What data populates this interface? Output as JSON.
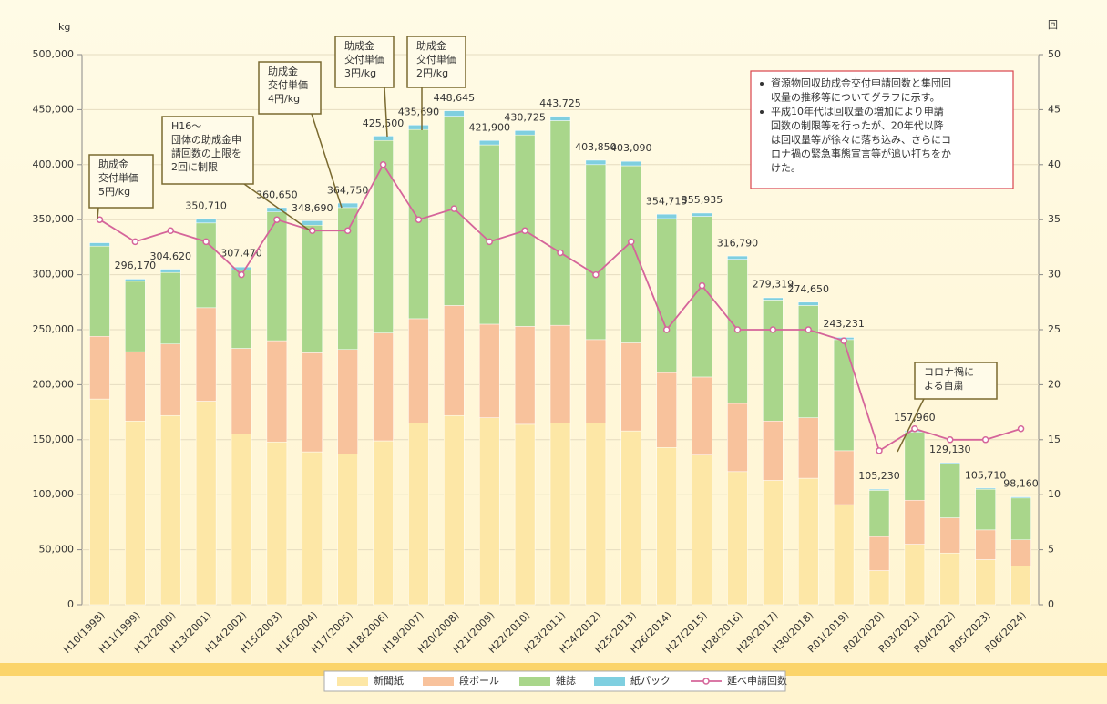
{
  "chart_data": {
    "type": "bar",
    "stacked": true,
    "y_label": "kg",
    "y2_label": "回",
    "categories": [
      "H10(1998)",
      "H11(1999)",
      "H12(2000)",
      "H13(2001)",
      "H14(2002)",
      "H15(2003)",
      "H16(2004)",
      "H17(2005)",
      "H18(2006)",
      "H19(2007)",
      "H20(2008)",
      "H21(2009)",
      "H22(2010)",
      "H23(2011)",
      "H24(2012)",
      "H25(2013)",
      "H26(2014)",
      "H27(2015)",
      "H28(2016)",
      "H29(2017)",
      "H30(2018)",
      "R01(2019)",
      "R02(2020)",
      "R03(2021)",
      "R04(2022)",
      "R05(2023)",
      "R06(2024)"
    ],
    "series": [
      {
        "name": "新聞紙",
        "color": "#fde7a6",
        "values": [
          187000,
          167000,
          172000,
          185000,
          155000,
          148000,
          139000,
          137000,
          149000,
          165000,
          172000,
          170000,
          164000,
          165000,
          165000,
          158000,
          143000,
          136000,
          121000,
          113000,
          115000,
          91000,
          31000,
          55000,
          47000,
          41000,
          35000
        ]
      },
      {
        "name": "段ボール",
        "color": "#f8c29c",
        "values": [
          57000,
          63000,
          65000,
          85000,
          78000,
          92000,
          90000,
          95000,
          98000,
          95000,
          100000,
          85000,
          89000,
          89000,
          76000,
          80000,
          68000,
          71000,
          62000,
          54000,
          55000,
          49000,
          31000,
          40000,
          32000,
          27000,
          24000
        ]
      },
      {
        "name": "雑誌",
        "color": "#a9d68b",
        "values": [
          82000,
          64000,
          65000,
          77000,
          71000,
          117000,
          116000,
          129000,
          175000,
          172000,
          172000,
          163000,
          174000,
          186000,
          159000,
          161000,
          140000,
          146000,
          131000,
          110000,
          102000,
          101000,
          42000,
          62000,
          49000,
          37000,
          38000
        ]
      },
      {
        "name": "紙パック",
        "color": "#7fcfe0",
        "values": [
          3000,
          2000,
          3000,
          4000,
          3000,
          4000,
          4000,
          4000,
          4000,
          4000,
          5000,
          4000,
          4000,
          4000,
          4000,
          4000,
          4000,
          3000,
          3000,
          2000,
          3000,
          2000,
          1000,
          1000,
          1000,
          1000,
          1000
        ]
      },
      {
        "name": "延べ申請回数",
        "color": "#d5659a",
        "type": "line",
        "axis": "y2",
        "values": [
          35,
          33,
          34,
          33,
          30,
          35,
          34,
          34,
          40,
          35,
          36,
          33,
          34,
          32,
          30,
          33,
          25,
          29,
          25,
          25,
          25,
          24,
          14,
          16,
          15,
          15,
          16
        ]
      }
    ],
    "totals": [
      null,
      {
        "value": 296170,
        "label": "296,170"
      },
      {
        "value": 304620,
        "label": "304,620"
      },
      {
        "value": 350710,
        "label": "350,710"
      },
      {
        "value": 307470,
        "label": "307,470"
      },
      {
        "value": 360650,
        "label": "360,650"
      },
      {
        "value": 348690,
        "label": "348,690"
      },
      {
        "value": 364750,
        "label": "364,750"
      },
      {
        "value": 425500,
        "label": "425,500"
      },
      {
        "value": 435690,
        "label": "435,690"
      },
      {
        "value": 448645,
        "label": "448,645"
      },
      {
        "value": 421900,
        "label": "421,900"
      },
      {
        "value": 430725,
        "label": "430,725"
      },
      {
        "value": 443725,
        "label": "443,725"
      },
      {
        "value": 403850,
        "label": "403,850"
      },
      {
        "value": 403090,
        "label": "403,090"
      },
      {
        "value": 354715,
        "label": "354,715"
      },
      {
        "value": 355935,
        "label": "355,935"
      },
      {
        "value": 316790,
        "label": "316,790"
      },
      {
        "value": 279319,
        "label": "279,319"
      },
      {
        "value": 274650,
        "label": "274,650"
      },
      {
        "value": 243231,
        "label": "243,231"
      },
      {
        "value": 105230,
        "label": "105,230"
      },
      {
        "value": 157960,
        "label": "157,960"
      },
      {
        "value": 129130,
        "label": "129,130"
      },
      {
        "value": 105710,
        "label": "105,710"
      },
      {
        "value": 98160,
        "label": "98,160"
      }
    ],
    "ylim": [
      0,
      500000
    ],
    "yticks": [
      0,
      {
        "value": 50000,
        "label": "50,000"
      },
      {
        "value": 100000,
        "label": "100,000"
      },
      {
        "value": 150000,
        "label": "150,000"
      },
      {
        "value": 200000,
        "label": "200,000"
      },
      {
        "value": 250000,
        "label": "250,000"
      },
      {
        "value": 300000,
        "label": "300,000"
      },
      {
        "value": 350000,
        "label": "350,000"
      },
      {
        "value": 400000,
        "label": "400,000"
      },
      {
        "value": 450000,
        "label": "450,000"
      },
      {
        "value": 500000,
        "label": "500,000"
      }
    ],
    "y2lim": [
      0,
      50
    ],
    "y2ticks": [
      0,
      5,
      10,
      15,
      20,
      25,
      30,
      35,
      40,
      45,
      50
    ],
    "annotations": [
      [
        "助成金",
        "交付単価",
        "5円/kg"
      ],
      [
        "H16～",
        "団体の助成金申",
        "請回数の上限を",
        "2回に制限"
      ],
      [
        "助成金",
        "交付単価",
        "4円/kg"
      ],
      [
        "助成金",
        "交付単価",
        "3円/kg"
      ],
      [
        "助成金",
        "交付単価",
        "2円/kg"
      ],
      [
        "コロナ禍に",
        "よる自粛"
      ]
    ],
    "notes": [
      [
        "資源物回収助成金交付申請回数と集団回",
        "収量の推移等についてグラフに示す。"
      ],
      [
        "平成10年代は回収量の増加により申請",
        "回数の制限等を行ったが、20年代以降",
        "は回収量等が徐々に落ち込み、さらにコ",
        "ロナ禍の緊急事態宣言等が追い打ちをか",
        "けた。"
      ]
    ]
  }
}
